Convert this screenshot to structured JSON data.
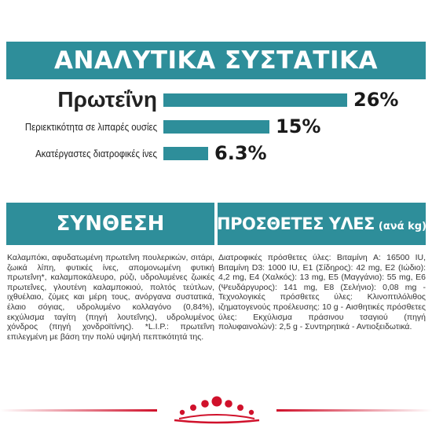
{
  "banner": {
    "title": "ΑΝΑΛΥΤΙΚΑ ΣΥΣΤΑΤΙΚΑ"
  },
  "analytical": [
    {
      "label": "Πρωτεΐνη",
      "value": "26%",
      "fraction": 0.26
    },
    {
      "label": "Περιεκτικότητα σε λιπαρές ουσίες",
      "value": "15%",
      "fraction": 0.15
    },
    {
      "label": "Ακατέργαστες διατροφικές ίνες",
      "value": "6.3%",
      "fraction": 0.063
    }
  ],
  "composition": {
    "title": "ΣΥΝΘΕΣΗ",
    "text": "Καλαμπόκι, αφυδατωμένη πρωτεΐνη πουλερικών, σιτάρι, ζωικά λίπη, φυτικές ίνες, απομονωμένη φυτική πρωτεΐνη*, καλαμποκάλευρο, ρύζι, υδρολυμένες ζωικές πρωτεΐνες, γλουτένη καλαμποκιού, πολτός τεύτλων, ιχθυέλαιο, ζύμες και μέρη τους, ανόργανα συστατικά, έλαιο σόγιας, υδρολυμένο κολλαγόνο (0,84%), εκχύλισμα ταγίτη (πηγή λουτεΐνης), υδρολυμένος χόνδρος (πηγή χονδροϊτίνης). *L.I.P.: πρωτεΐνη επιλεγμένη με βάση την πολύ υψηλή πεπτικότητά της."
  },
  "additives": {
    "title": "ΠΡΟΣΘΕΤΕΣ ΥΛΕΣ",
    "subtitle": "(ανά kg)",
    "text": "Διατροφικές πρόσθετες ύλες: Βιταμίνη A: 16500 IU, Βιταμίνη D3: 1000 IU, E1 (Σίδηρος): 42 mg, E2 (Ιώδιο): 4,2 mg, E4 (Χαλκός): 13 mg, E5 (Μαγγάνιο): 55 mg, E6 (Ψευδάργυρος): 141 mg, E8 (Σελήνιο): 0,08 mg - Τεχνολογικές πρόσθετες ύλες: Κλινοπτιλόλιθος ιζηματογενούς προέλευσης: 10 g - Αισθητικές πρόσθετες ύλες: Εκχύλισμα πράσινου τσαγιού (πηγή πολυφαινολών): 2,5 g - Συντηρητικά - Αντιοξειδωτικά."
  },
  "colors": {
    "accent": "#2e8e9a",
    "brand_red": "#d0112b"
  },
  "logo": {
    "icon": "royal-canin-crown-icon"
  }
}
